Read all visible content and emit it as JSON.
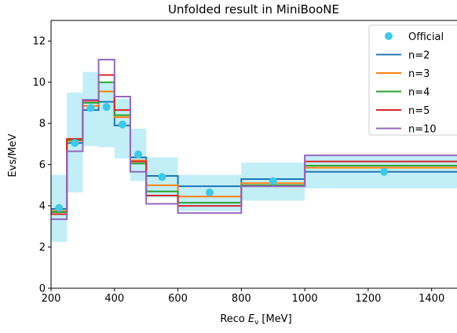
{
  "chart_data": {
    "type": "step",
    "title": "Unfolded result in MiniBooNE",
    "xlabel_prefix": "Reco ",
    "xlabel_symbol": "E",
    "xlabel_sub": "ν",
    "xlabel_suffix": " [MeV]",
    "ylabel": "Evs/MeV",
    "xlim": [
      200,
      1480
    ],
    "ylim": [
      0,
      13
    ],
    "xticks": [
      200,
      400,
      600,
      800,
      1000,
      1200,
      1400
    ],
    "yticks": [
      0,
      2,
      4,
      6,
      8,
      10,
      12
    ],
    "legend_position": "upper right",
    "bin_edges": [
      200,
      250,
      300,
      350,
      400,
      450,
      500,
      600,
      800,
      1000,
      1480
    ],
    "official": {
      "name": "Official",
      "color": "#40c8e8",
      "x": [
        225,
        275,
        325,
        375,
        425,
        475,
        550,
        700,
        900,
        1250
      ],
      "values": [
        3.9,
        7.05,
        8.75,
        8.8,
        7.95,
        6.5,
        5.4,
        4.65,
        5.2,
        5.65
      ],
      "band_low": [
        2.25,
        4.65,
        6.9,
        6.85,
        6.3,
        5.2,
        4.4,
        3.75,
        4.25,
        4.85
      ],
      "band_high": [
        5.5,
        9.5,
        10.5,
        10.0,
        9.2,
        7.75,
        6.35,
        5.5,
        6.1,
        6.45
      ],
      "band_color": "#c2eef8"
    },
    "series": [
      {
        "name": "n=2",
        "color": "#1f77b4",
        "values": [
          3.85,
          7.05,
          8.65,
          9.05,
          7.9,
          6.35,
          5.45,
          4.95,
          5.3,
          5.65
        ]
      },
      {
        "name": "n=3",
        "color": "#ff7f0e",
        "values": [
          3.75,
          7.15,
          8.85,
          9.55,
          8.3,
          6.2,
          5.0,
          4.45,
          5.1,
          5.85
        ]
      },
      {
        "name": "n=4",
        "color": "#2ca02c",
        "values": [
          3.7,
          7.2,
          9.0,
          10.0,
          8.4,
          6.05,
          4.7,
          4.15,
          5.0,
          5.95
        ]
      },
      {
        "name": "n=5",
        "color": "#d62728",
        "values": [
          3.6,
          7.25,
          9.1,
          10.35,
          8.65,
          6.15,
          4.5,
          4.0,
          4.95,
          6.15
        ]
      },
      {
        "name": "n=10",
        "color": "#9467bd",
        "values": [
          3.35,
          6.65,
          9.15,
          11.1,
          9.3,
          5.65,
          4.1,
          3.65,
          4.95,
          6.45
        ]
      }
    ]
  }
}
